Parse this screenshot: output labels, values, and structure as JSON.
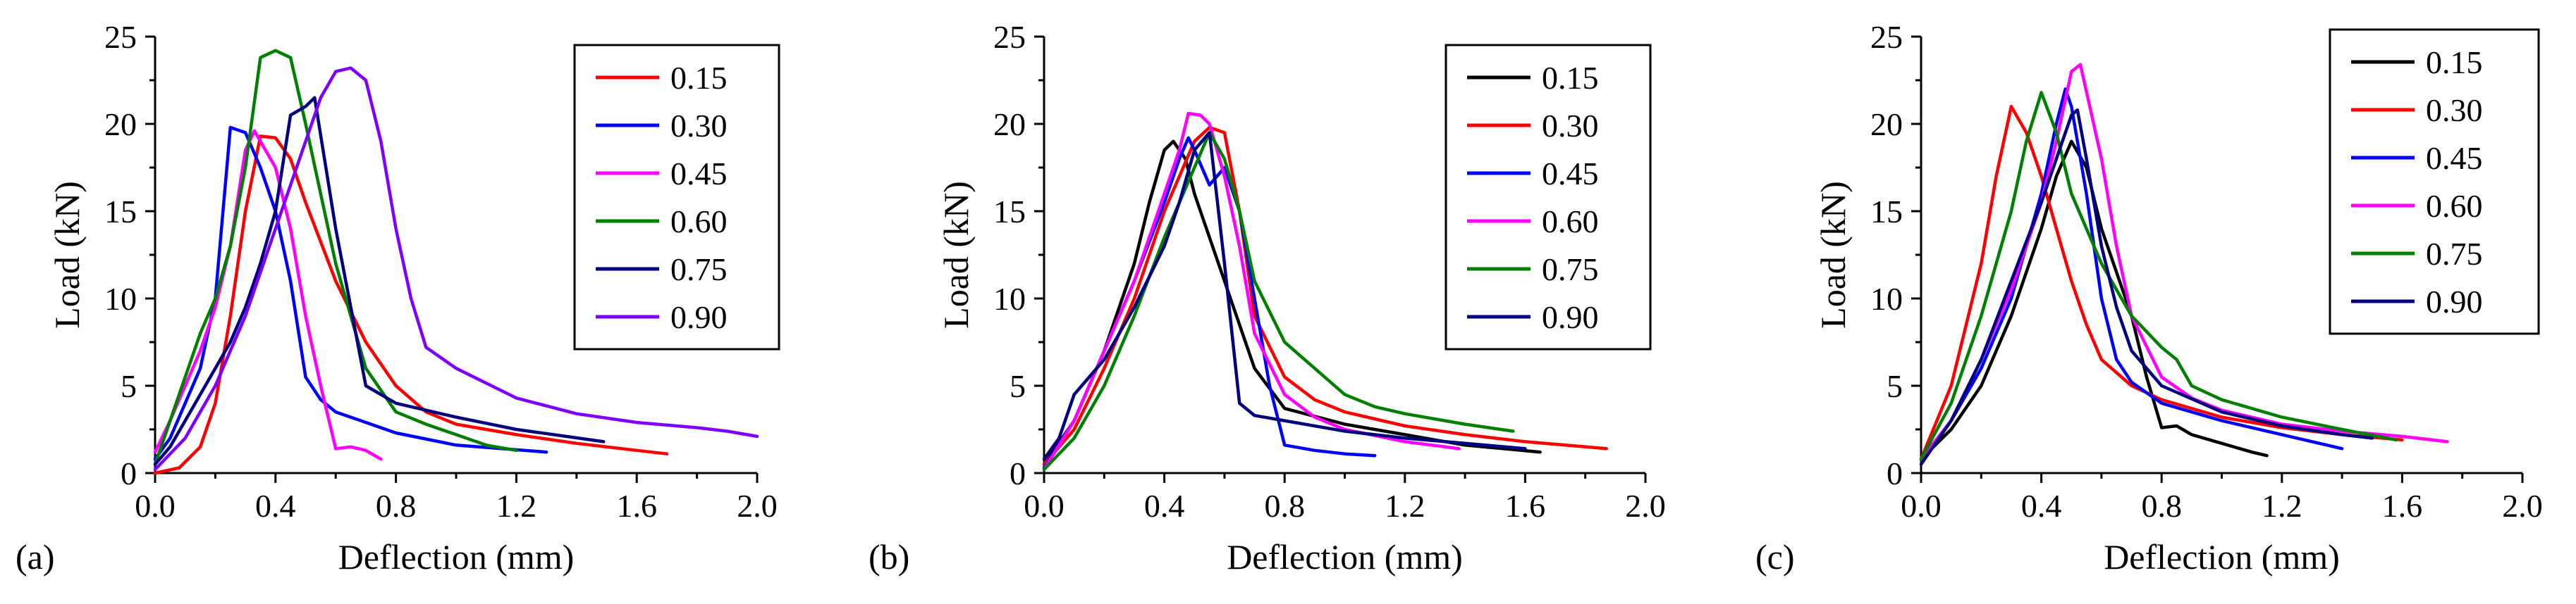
{
  "figure": {
    "colors": {
      "black": "#000000",
      "red": "#ff0000",
      "blue": "#0000ff",
      "magenta": "#ff00ff",
      "green": "#008000",
      "navy": "#000080",
      "purple": "#8000ff"
    }
  },
  "chart_data": [
    {
      "type": "line",
      "panel_label": "(a)",
      "xlabel": "Deflection (mm)",
      "ylabel": "Load (kN)",
      "xlim": [
        0,
        2.0
      ],
      "ylim": [
        0,
        25
      ],
      "xticks": [
        "0.0",
        "0.4",
        "0.8",
        "1.2",
        "1.6",
        "2.0"
      ],
      "yticks": [
        "0",
        "5",
        "10",
        "15",
        "20",
        "25"
      ],
      "legend_position": "top-right",
      "series": [
        {
          "name": "0.15",
          "color": "#ff0000",
          "x": [
            0,
            0.08,
            0.15,
            0.2,
            0.25,
            0.3,
            0.35,
            0.4,
            0.45,
            0.5,
            0.6,
            0.7,
            0.8,
            0.9,
            1.0,
            1.2,
            1.4,
            1.6,
            1.7
          ],
          "y": [
            0,
            0.3,
            1.5,
            4,
            9,
            15,
            19.3,
            19.2,
            18,
            15.5,
            11,
            7.5,
            5,
            3.5,
            2.8,
            2.2,
            1.7,
            1.3,
            1.1
          ]
        },
        {
          "name": "0.30",
          "color": "#0000ff",
          "x": [
            0,
            0.05,
            0.1,
            0.15,
            0.2,
            0.25,
            0.3,
            0.35,
            0.4,
            0.45,
            0.5,
            0.55,
            0.6,
            0.8,
            1.0,
            1.3
          ],
          "y": [
            0.8,
            2,
            4,
            6,
            10,
            19.8,
            19.5,
            17.5,
            15,
            11,
            5.5,
            4.2,
            3.5,
            2.3,
            1.6,
            1.2
          ]
        },
        {
          "name": "0.45",
          "color": "#ff00ff",
          "x": [
            0,
            0.05,
            0.1,
            0.15,
            0.2,
            0.25,
            0.3,
            0.33,
            0.4,
            0.45,
            0.5,
            0.55,
            0.6,
            0.65,
            0.7,
            0.75
          ],
          "y": [
            1.2,
            3,
            5,
            7,
            9.5,
            13,
            18.5,
            19.6,
            17.5,
            14,
            9,
            5,
            1.4,
            1.5,
            1.3,
            0.8
          ]
        },
        {
          "name": "0.60",
          "color": "#008000",
          "x": [
            0,
            0.05,
            0.1,
            0.15,
            0.2,
            0.25,
            0.3,
            0.35,
            0.4,
            0.45,
            0.5,
            0.6,
            0.7,
            0.8,
            0.9,
            1.0,
            1.1,
            1.2
          ],
          "y": [
            0.5,
            3,
            5.5,
            8,
            10,
            13,
            17.5,
            23.8,
            24.2,
            23.8,
            20,
            12,
            6,
            3.5,
            2.8,
            2.2,
            1.6,
            1.3
          ]
        },
        {
          "name": "0.75",
          "color": "#000080",
          "x": [
            0,
            0.05,
            0.1,
            0.15,
            0.2,
            0.25,
            0.3,
            0.35,
            0.4,
            0.45,
            0.5,
            0.53,
            0.6,
            0.7,
            0.8,
            1.0,
            1.2,
            1.49
          ],
          "y": [
            0.5,
            1.5,
            3,
            4.5,
            6,
            7.5,
            9.5,
            12,
            15,
            20.5,
            21,
            21.5,
            14,
            5,
            4,
            3.2,
            2.5,
            1.8
          ]
        },
        {
          "name": "0.90",
          "color": "#8000ff",
          "x": [
            0,
            0.1,
            0.2,
            0.3,
            0.4,
            0.5,
            0.55,
            0.6,
            0.65,
            0.7,
            0.75,
            0.8,
            0.85,
            0.9,
            1.0,
            1.2,
            1.4,
            1.6,
            1.8,
            1.9,
            2.0
          ],
          "y": [
            0.2,
            2,
            5,
            9,
            14,
            19,
            21.5,
            23,
            23.2,
            22.5,
            19,
            14,
            10,
            7.2,
            6,
            4.3,
            3.4,
            2.9,
            2.6,
            2.4,
            2.1
          ]
        }
      ]
    },
    {
      "type": "line",
      "panel_label": "(b)",
      "xlabel": "Deflection (mm)",
      "ylabel": "Load (kN)",
      "xlim": [
        0,
        2.0
      ],
      "ylim": [
        0,
        25
      ],
      "xticks": [
        "0.0",
        "0.4",
        "0.8",
        "1.2",
        "1.6",
        "2.0"
      ],
      "yticks": [
        "0",
        "5",
        "10",
        "15",
        "20",
        "25"
      ],
      "legend_position": "top-right",
      "series": [
        {
          "name": "0.15",
          "color": "#000000",
          "x": [
            0,
            0.1,
            0.2,
            0.3,
            0.35,
            0.4,
            0.43,
            0.47,
            0.5,
            0.55,
            0.6,
            0.7,
            0.8,
            1.0,
            1.2,
            1.4,
            1.65
          ],
          "y": [
            0.5,
            3,
            7,
            12,
            15.5,
            18.5,
            19,
            18,
            16,
            13.5,
            11,
            6,
            3.7,
            2.8,
            2.2,
            1.6,
            1.2
          ]
        },
        {
          "name": "0.30",
          "color": "#ff0000",
          "x": [
            0,
            0.1,
            0.2,
            0.3,
            0.4,
            0.5,
            0.55,
            0.6,
            0.65,
            0.7,
            0.8,
            0.9,
            1.0,
            1.2,
            1.4,
            1.6,
            1.87
          ],
          "y": [
            0.5,
            2.5,
            6,
            10,
            15,
            19,
            19.8,
            19.5,
            15,
            9,
            5.5,
            4.2,
            3.5,
            2.7,
            2.2,
            1.8,
            1.4
          ]
        },
        {
          "name": "0.45",
          "color": "#0000ff",
          "x": [
            0,
            0.1,
            0.2,
            0.3,
            0.4,
            0.45,
            0.48,
            0.5,
            0.55,
            0.6,
            0.65,
            0.7,
            0.75,
            0.8,
            0.9,
            1.0,
            1.1
          ],
          "y": [
            0.3,
            3,
            7,
            11,
            15.5,
            18,
            19.2,
            18.5,
            16.5,
            17.5,
            15,
            10,
            5,
            1.6,
            1.3,
            1.1,
            1
          ]
        },
        {
          "name": "0.60",
          "color": "#ff00ff",
          "x": [
            0,
            0.1,
            0.2,
            0.3,
            0.4,
            0.45,
            0.48,
            0.52,
            0.55,
            0.6,
            0.65,
            0.7,
            0.8,
            0.9,
            1.0,
            1.2,
            1.38
          ],
          "y": [
            0.2,
            3,
            7,
            11,
            16,
            18.5,
            20.6,
            20.5,
            20,
            17,
            13,
            8,
            4.5,
            3.2,
            2.5,
            1.8,
            1.4
          ]
        },
        {
          "name": "0.75",
          "color": "#008000",
          "x": [
            0,
            0.1,
            0.2,
            0.3,
            0.4,
            0.5,
            0.55,
            0.6,
            0.65,
            0.7,
            0.8,
            0.9,
            1.0,
            1.1,
            1.2,
            1.4,
            1.56
          ],
          "y": [
            0.2,
            2,
            5,
            9,
            13.5,
            17.5,
            19.5,
            18,
            15,
            11,
            7.5,
            6,
            4.5,
            3.8,
            3.4,
            2.8,
            2.4
          ]
        },
        {
          "name": "0.90",
          "color": "#000080",
          "x": [
            0,
            0.05,
            0.1,
            0.15,
            0.2,
            0.3,
            0.4,
            0.45,
            0.5,
            0.55,
            0.6,
            0.65,
            0.7,
            0.8,
            1.0,
            1.2,
            1.4,
            1.6
          ],
          "y": [
            0.8,
            2,
            4.5,
            5.5,
            6.5,
            9.5,
            13,
            15.5,
            18.5,
            19.5,
            12,
            4,
            3.3,
            3,
            2.4,
            2,
            1.7,
            1.4
          ]
        }
      ]
    },
    {
      "type": "line",
      "panel_label": "(c)",
      "xlabel": "Deflection (mm)",
      "ylabel": "Load (kN)",
      "xlim": [
        0,
        2.0
      ],
      "ylim": [
        0,
        25
      ],
      "xticks": [
        "0.0",
        "0.4",
        "0.8",
        "1.2",
        "1.6",
        "2.0"
      ],
      "yticks": [
        "0",
        "5",
        "10",
        "15",
        "20",
        "25"
      ],
      "legend_position": "top-right",
      "series": [
        {
          "name": "0.15",
          "color": "#000000",
          "x": [
            0,
            0.1,
            0.2,
            0.3,
            0.4,
            0.45,
            0.5,
            0.55,
            0.6,
            0.7,
            0.75,
            0.8,
            0.85,
            0.9,
            1.0,
            1.1,
            1.15
          ],
          "y": [
            0.8,
            2.5,
            5,
            9,
            14,
            17,
            19,
            17.5,
            14,
            9,
            5.5,
            2.6,
            2.7,
            2.2,
            1.7,
            1.2,
            1
          ]
        },
        {
          "name": "0.30",
          "color": "#ff0000",
          "x": [
            0,
            0.1,
            0.2,
            0.25,
            0.3,
            0.35,
            0.4,
            0.45,
            0.5,
            0.55,
            0.6,
            0.7,
            0.8,
            1.0,
            1.2,
            1.4,
            1.6
          ],
          "y": [
            0.8,
            5,
            12,
            17,
            21,
            19.5,
            17,
            14,
            11,
            8.5,
            6.5,
            5,
            4.2,
            3.2,
            2.6,
            2.2,
            1.9
          ]
        },
        {
          "name": "0.45",
          "color": "#0000ff",
          "x": [
            0,
            0.1,
            0.2,
            0.3,
            0.4,
            0.45,
            0.48,
            0.5,
            0.55,
            0.6,
            0.65,
            0.7,
            0.8,
            1.0,
            1.2,
            1.4
          ],
          "y": [
            0.8,
            3,
            6,
            10,
            16,
            20,
            22,
            21,
            16,
            10,
            6.5,
            5.2,
            4,
            3,
            2.2,
            1.4
          ]
        },
        {
          "name": "0.60",
          "color": "#ff00ff",
          "x": [
            0,
            0.1,
            0.2,
            0.3,
            0.4,
            0.45,
            0.5,
            0.53,
            0.6,
            0.65,
            0.7,
            0.8,
            0.9,
            1.0,
            1.2,
            1.4,
            1.6,
            1.75
          ],
          "y": [
            0.8,
            3,
            6.5,
            10.5,
            15.5,
            19,
            23,
            23.4,
            18,
            13,
            9,
            5.5,
            4.3,
            3.6,
            2.8,
            2.4,
            2.1,
            1.8
          ]
        },
        {
          "name": "0.75",
          "color": "#008000",
          "x": [
            0,
            0.1,
            0.2,
            0.3,
            0.35,
            0.4,
            0.45,
            0.5,
            0.6,
            0.7,
            0.8,
            0.85,
            0.9,
            1.0,
            1.2,
            1.4,
            1.58
          ],
          "y": [
            0.8,
            4,
            9,
            15,
            19,
            21.8,
            19.5,
            16,
            12,
            9,
            7.2,
            6.5,
            5,
            4.2,
            3.2,
            2.5,
            1.9
          ]
        },
        {
          "name": "0.90",
          "color": "#000080",
          "x": [
            0,
            0.1,
            0.2,
            0.3,
            0.4,
            0.45,
            0.5,
            0.52,
            0.55,
            0.6,
            0.65,
            0.7,
            0.8,
            1.0,
            1.2,
            1.4,
            1.5
          ],
          "y": [
            0.5,
            3,
            6.5,
            11,
            15.5,
            18,
            20.5,
            20.8,
            18,
            13,
            9.5,
            7,
            5,
            3.5,
            2.7,
            2.2,
            2
          ]
        }
      ]
    }
  ]
}
